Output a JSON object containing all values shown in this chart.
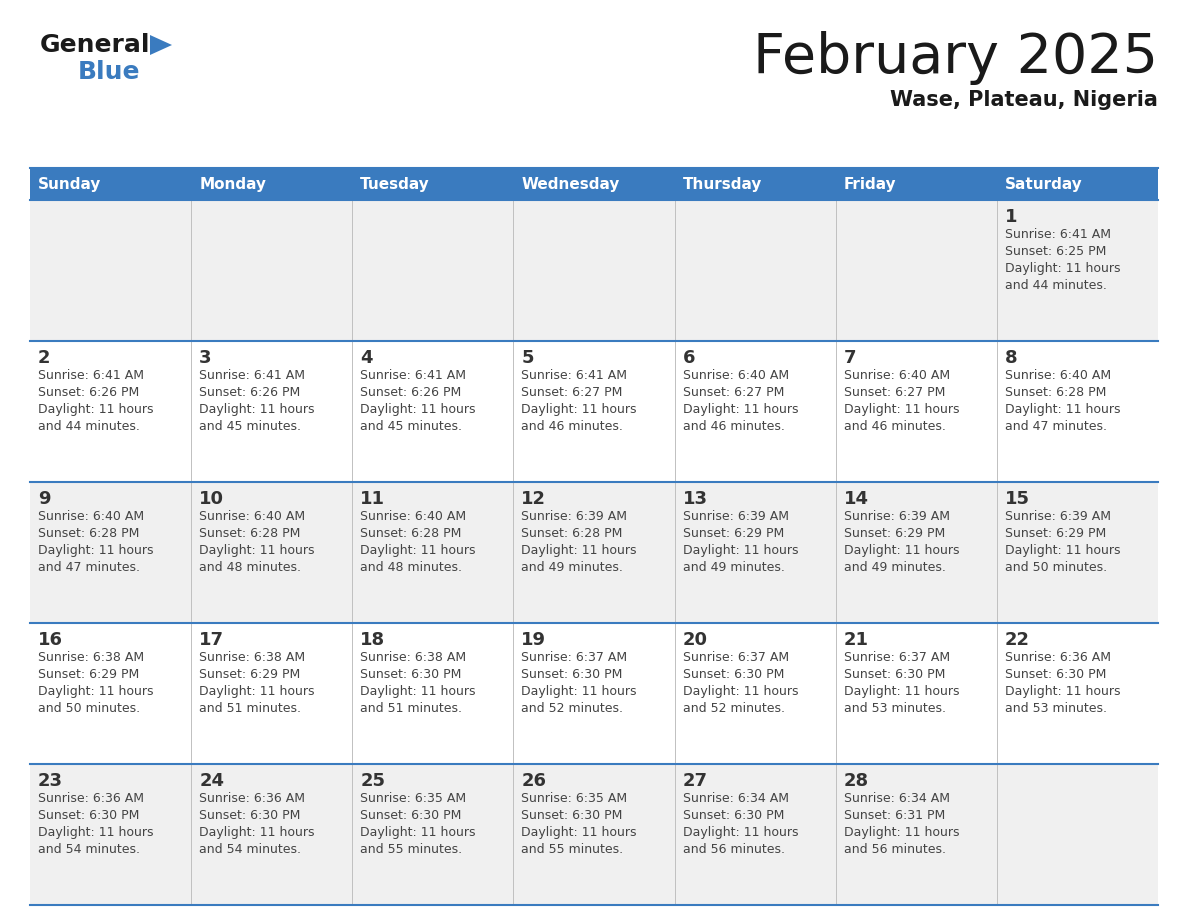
{
  "title": "February 2025",
  "subtitle": "Wase, Plateau, Nigeria",
  "header_color": "#3a7bbf",
  "header_text_color": "#ffffff",
  "border_color": "#3a7bbf",
  "day_number_color": "#333333",
  "text_color": "#444444",
  "row_bg_odd": "#f0f0f0",
  "row_bg_even": "#ffffff",
  "days_of_week": [
    "Sunday",
    "Monday",
    "Tuesday",
    "Wednesday",
    "Thursday",
    "Friday",
    "Saturday"
  ],
  "weeks": [
    [
      {
        "day": "",
        "sunrise": "",
        "sunset": "",
        "daylight": ""
      },
      {
        "day": "",
        "sunrise": "",
        "sunset": "",
        "daylight": ""
      },
      {
        "day": "",
        "sunrise": "",
        "sunset": "",
        "daylight": ""
      },
      {
        "day": "",
        "sunrise": "",
        "sunset": "",
        "daylight": ""
      },
      {
        "day": "",
        "sunrise": "",
        "sunset": "",
        "daylight": ""
      },
      {
        "day": "",
        "sunrise": "",
        "sunset": "",
        "daylight": ""
      },
      {
        "day": "1",
        "sunrise": "6:41 AM",
        "sunset": "6:25 PM",
        "daylight": "11 hours\nand 44 minutes."
      }
    ],
    [
      {
        "day": "2",
        "sunrise": "6:41 AM",
        "sunset": "6:26 PM",
        "daylight": "11 hours\nand 44 minutes."
      },
      {
        "day": "3",
        "sunrise": "6:41 AM",
        "sunset": "6:26 PM",
        "daylight": "11 hours\nand 45 minutes."
      },
      {
        "day": "4",
        "sunrise": "6:41 AM",
        "sunset": "6:26 PM",
        "daylight": "11 hours\nand 45 minutes."
      },
      {
        "day": "5",
        "sunrise": "6:41 AM",
        "sunset": "6:27 PM",
        "daylight": "11 hours\nand 46 minutes."
      },
      {
        "day": "6",
        "sunrise": "6:40 AM",
        "sunset": "6:27 PM",
        "daylight": "11 hours\nand 46 minutes."
      },
      {
        "day": "7",
        "sunrise": "6:40 AM",
        "sunset": "6:27 PM",
        "daylight": "11 hours\nand 46 minutes."
      },
      {
        "day": "8",
        "sunrise": "6:40 AM",
        "sunset": "6:28 PM",
        "daylight": "11 hours\nand 47 minutes."
      }
    ],
    [
      {
        "day": "9",
        "sunrise": "6:40 AM",
        "sunset": "6:28 PM",
        "daylight": "11 hours\nand 47 minutes."
      },
      {
        "day": "10",
        "sunrise": "6:40 AM",
        "sunset": "6:28 PM",
        "daylight": "11 hours\nand 48 minutes."
      },
      {
        "day": "11",
        "sunrise": "6:40 AM",
        "sunset": "6:28 PM",
        "daylight": "11 hours\nand 48 minutes."
      },
      {
        "day": "12",
        "sunrise": "6:39 AM",
        "sunset": "6:28 PM",
        "daylight": "11 hours\nand 49 minutes."
      },
      {
        "day": "13",
        "sunrise": "6:39 AM",
        "sunset": "6:29 PM",
        "daylight": "11 hours\nand 49 minutes."
      },
      {
        "day": "14",
        "sunrise": "6:39 AM",
        "sunset": "6:29 PM",
        "daylight": "11 hours\nand 49 minutes."
      },
      {
        "day": "15",
        "sunrise": "6:39 AM",
        "sunset": "6:29 PM",
        "daylight": "11 hours\nand 50 minutes."
      }
    ],
    [
      {
        "day": "16",
        "sunrise": "6:38 AM",
        "sunset": "6:29 PM",
        "daylight": "11 hours\nand 50 minutes."
      },
      {
        "day": "17",
        "sunrise": "6:38 AM",
        "sunset": "6:29 PM",
        "daylight": "11 hours\nand 51 minutes."
      },
      {
        "day": "18",
        "sunrise": "6:38 AM",
        "sunset": "6:30 PM",
        "daylight": "11 hours\nand 51 minutes."
      },
      {
        "day": "19",
        "sunrise": "6:37 AM",
        "sunset": "6:30 PM",
        "daylight": "11 hours\nand 52 minutes."
      },
      {
        "day": "20",
        "sunrise": "6:37 AM",
        "sunset": "6:30 PM",
        "daylight": "11 hours\nand 52 minutes."
      },
      {
        "day": "21",
        "sunrise": "6:37 AM",
        "sunset": "6:30 PM",
        "daylight": "11 hours\nand 53 minutes."
      },
      {
        "day": "22",
        "sunrise": "6:36 AM",
        "sunset": "6:30 PM",
        "daylight": "11 hours\nand 53 minutes."
      }
    ],
    [
      {
        "day": "23",
        "sunrise": "6:36 AM",
        "sunset": "6:30 PM",
        "daylight": "11 hours\nand 54 minutes."
      },
      {
        "day": "24",
        "sunrise": "6:36 AM",
        "sunset": "6:30 PM",
        "daylight": "11 hours\nand 54 minutes."
      },
      {
        "day": "25",
        "sunrise": "6:35 AM",
        "sunset": "6:30 PM",
        "daylight": "11 hours\nand 55 minutes."
      },
      {
        "day": "26",
        "sunrise": "6:35 AM",
        "sunset": "6:30 PM",
        "daylight": "11 hours\nand 55 minutes."
      },
      {
        "day": "27",
        "sunrise": "6:34 AM",
        "sunset": "6:30 PM",
        "daylight": "11 hours\nand 56 minutes."
      },
      {
        "day": "28",
        "sunrise": "6:34 AM",
        "sunset": "6:31 PM",
        "daylight": "11 hours\nand 56 minutes."
      },
      {
        "day": "",
        "sunrise": "",
        "sunset": "",
        "daylight": ""
      }
    ]
  ]
}
